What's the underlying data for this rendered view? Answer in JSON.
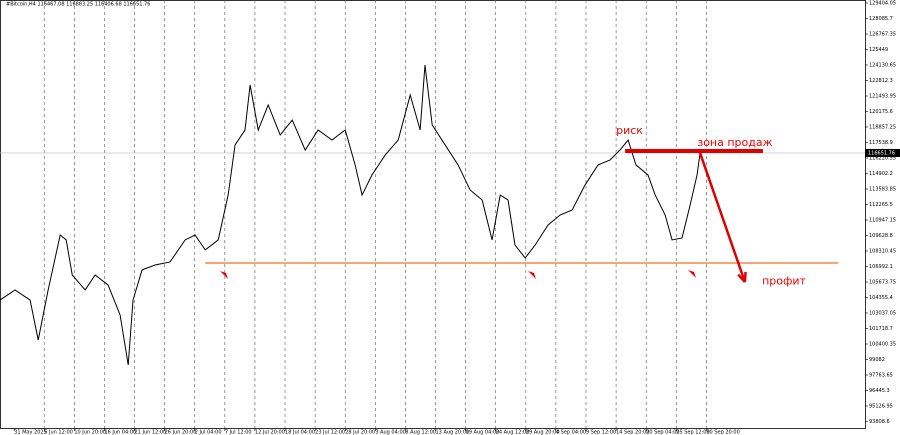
{
  "chart_data": {
    "type": "line",
    "title": "#Bitcoin,H4  116467.08 116883.25 116406.68 116651.76",
    "last_price_label": "116651.76",
    "color": "#000000",
    "xlim": [
      -0.47,
      28.27
    ],
    "ylim": [
      93256,
      129659
    ],
    "grid": true,
    "xticks": [
      {
        "value": 0,
        "label": "31 May 2025"
      },
      {
        "value": 1,
        "label": "5 Jun 12:00"
      },
      {
        "value": 2,
        "label": "10 Jun 20:00"
      },
      {
        "value": 3,
        "label": "16 Jun 04:00"
      },
      {
        "value": 4,
        "label": "21 Jun 12:00"
      },
      {
        "value": 5,
        "label": "26 Jun 20:00"
      },
      {
        "value": 6,
        "label": "2 Jul 04:00"
      },
      {
        "value": 7,
        "label": "7 Jul 12:00"
      },
      {
        "value": 8,
        "label": "12 Jul 20:00"
      },
      {
        "value": 9,
        "label": "18 Jul 04:00"
      },
      {
        "value": 10,
        "label": "23 Jul 12:00"
      },
      {
        "value": 11,
        "label": "28 Jul 20:00"
      },
      {
        "value": 12,
        "label": "3 Aug 04:00"
      },
      {
        "value": 13,
        "label": "8 Aug 12:00"
      },
      {
        "value": 14,
        "label": "13 Aug 20:00"
      },
      {
        "value": 15,
        "label": "19 Aug 04:00"
      },
      {
        "value": 16,
        "label": "24 Aug 12:00"
      },
      {
        "value": 17,
        "label": "29 Aug 20:00"
      },
      {
        "value": 18,
        "label": "4 Sep 04:00"
      },
      {
        "value": 19,
        "label": "9 Sep 12:00"
      },
      {
        "value": 20,
        "label": "14 Sep 20:00"
      },
      {
        "value": 21,
        "label": "20 Sep 04:00"
      },
      {
        "value": 22,
        "label": "25 Sep 12:00"
      },
      {
        "value": 23,
        "label": "30 Sep 20:00"
      }
    ],
    "yticks": [
      129404.05,
      128085.7,
      126767.35,
      125449,
      124130.65,
      122812.3,
      121493.95,
      120175.6,
      118857.25,
      117538.9,
      116220.55,
      114902.2,
      113583.85,
      112265.5,
      110947.15,
      109628.8,
      108310.45,
      106992.1,
      105673.75,
      104355.4,
      103037.05,
      101718.7,
      100400.35,
      99082,
      97763.65,
      96445.3,
      95126.95,
      93808.6
    ],
    "series": [
      {
        "name": "#Bitcoin,H4",
        "x": [
          -0.47,
          0.03,
          0.53,
          0.8,
          1.13,
          1.53,
          1.73,
          1.93,
          2.36,
          2.69,
          3.12,
          3.52,
          3.79,
          3.95,
          4.25,
          4.68,
          5.18,
          5.68,
          6.01,
          6.35,
          6.78,
          7.11,
          7.34,
          7.67,
          7.84,
          8.11,
          8.44,
          8.84,
          9.24,
          9.67,
          10.1,
          10.56,
          11,
          11.33,
          11.56,
          11.89,
          12.33,
          12.76,
          13.16,
          13.49,
          13.65,
          13.89,
          14.32,
          14.75,
          15.15,
          15.55,
          15.88,
          16.15,
          16.41,
          16.64,
          16.98,
          17.31,
          17.74,
          18.14,
          18.54,
          18.97,
          19.4,
          19.8,
          20.13,
          20.4,
          20.66,
          21.06,
          21.3,
          21.63,
          21.86,
          22.19,
          22.46,
          22.69,
          22.79
        ],
        "values": [
          104140,
          105000,
          104140,
          100740,
          105000,
          109670,
          109250,
          106270,
          105000,
          106270,
          105420,
          102870,
          98620,
          104140,
          106700,
          107120,
          107380,
          109250,
          109670,
          108400,
          109250,
          113070,
          117330,
          118600,
          122430,
          118600,
          120730,
          118180,
          119450,
          116900,
          118600,
          117750,
          118600,
          115630,
          113070,
          114780,
          116480,
          117750,
          121580,
          118600,
          124130,
          119030,
          117330,
          115630,
          113500,
          112650,
          109250,
          113070,
          112650,
          108820,
          107720,
          108820,
          110520,
          111370,
          111800,
          113930,
          115630,
          116050,
          116900,
          117750,
          115630,
          114780,
          113070,
          111370,
          109250,
          109420,
          112220,
          114780,
          116650
        ]
      }
    ],
    "level_line": {
      "y": 107290,
      "x": [
        6.35,
        27.38
      ],
      "color": "#f07020"
    },
    "sell_zone": {
      "y": 116820,
      "x": [
        20.3,
        24.88
      ],
      "color": "#e00000"
    },
    "target_arrow": {
      "x": [
        22.79,
        24.28
      ],
      "y": [
        116650,
        105675
      ],
      "color": "#e00000"
    },
    "annotations": [
      {
        "text": "риск",
        "x": 20.0,
        "y": 118500
      },
      {
        "text": "зона продаж",
        "x": 22.7,
        "y": 117500
      },
      {
        "text": "профит",
        "x": 24.85,
        "y": 105700
      }
    ]
  }
}
